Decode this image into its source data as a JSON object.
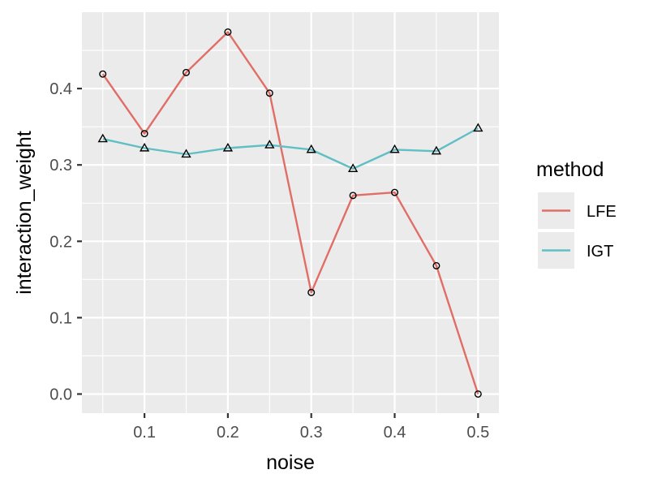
{
  "chart_data": {
    "type": "line",
    "xlabel": "noise",
    "ylabel": "interaction_weight",
    "x": [
      0.05,
      0.1,
      0.15,
      0.2,
      0.25,
      0.3,
      0.35,
      0.4,
      0.45,
      0.5
    ],
    "xlim": [
      0.025,
      0.525
    ],
    "ylim": [
      -0.025,
      0.5
    ],
    "x_ticks": [
      0.1,
      0.2,
      0.3,
      0.4,
      0.5
    ],
    "x_tick_labels": [
      "0.1",
      "0.2",
      "0.3",
      "0.4",
      "0.5"
    ],
    "y_ticks": [
      0.0,
      0.1,
      0.2,
      0.3,
      0.4
    ],
    "y_tick_labels": [
      "0.0",
      "0.1",
      "0.2",
      "0.3",
      "0.4"
    ],
    "grid": true,
    "legend": {
      "title": "method",
      "placement": "right"
    },
    "series": [
      {
        "name": "LFE",
        "color": "#E06E67",
        "marker": "circle",
        "values": [
          0.419,
          0.341,
          0.421,
          0.474,
          0.394,
          0.133,
          0.26,
          0.264,
          0.168,
          0.0
        ]
      },
      {
        "name": "IGT",
        "color": "#5FBFC4",
        "marker": "triangle",
        "values": [
          0.334,
          0.322,
          0.314,
          0.322,
          0.326,
          0.32,
          0.295,
          0.32,
          0.318,
          0.348
        ]
      }
    ]
  }
}
